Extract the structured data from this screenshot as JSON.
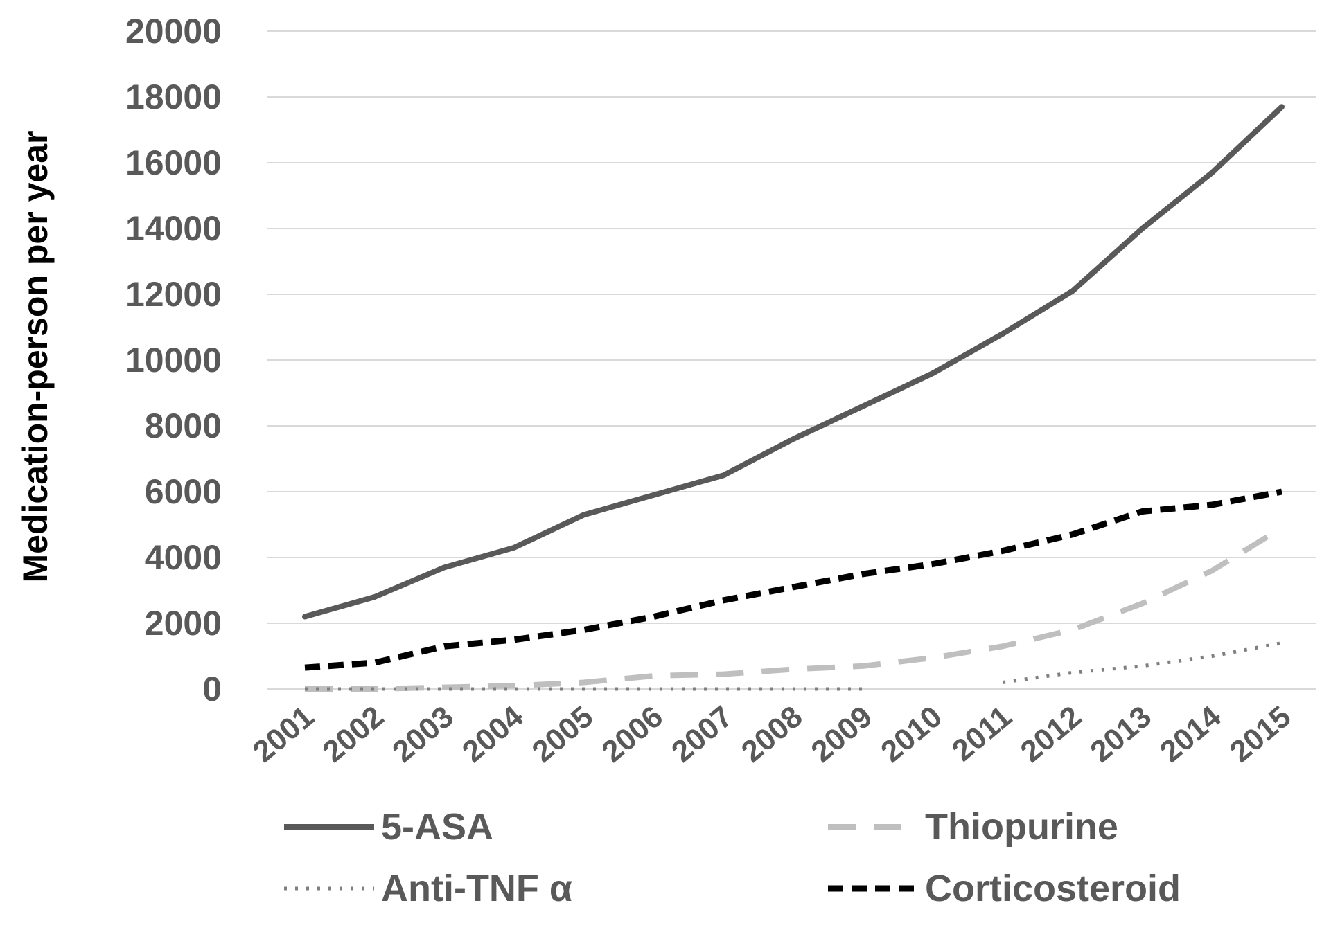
{
  "chart_data": {
    "type": "line",
    "title": "",
    "xlabel": "",
    "ylabel": "Medication-person per year",
    "ylim": [
      0,
      20000
    ],
    "yticks": [
      "0",
      "2000",
      "4000",
      "6000",
      "8000",
      "10000",
      "12000",
      "14000",
      "16000",
      "18000",
      "20000"
    ],
    "categories": [
      "2001",
      "2002",
      "2003",
      "2004",
      "2005",
      "2006",
      "2007",
      "2008",
      "2009",
      "2010",
      "2011",
      "2012",
      "2013",
      "2014",
      "2015"
    ],
    "grid": true,
    "legend_position": "bottom",
    "series": [
      {
        "name": "5-ASA",
        "style": "solid",
        "color": "#595959",
        "values": [
          2200,
          2800,
          3700,
          4300,
          5300,
          5900,
          6500,
          7600,
          8600,
          9600,
          10800,
          12100,
          14000,
          15700,
          17700
        ]
      },
      {
        "name": "Thiopurine",
        "style": "long-dash",
        "color": "#bfbfbf",
        "values": [
          0,
          0,
          50,
          100,
          200,
          400,
          450,
          600,
          700,
          950,
          1300,
          1800,
          2600,
          3600,
          4900
        ]
      },
      {
        "name": "Anti-TNF α",
        "style": "dotted",
        "color": "#7f7f7f",
        "values": [
          0,
          0,
          0,
          0,
          0,
          0,
          0,
          0,
          0,
          null,
          200,
          500,
          700,
          1000,
          1400
        ]
      },
      {
        "name": "Corticosteroid",
        "style": "dashed",
        "color": "#000000",
        "values": [
          650,
          800,
          1300,
          1500,
          1800,
          2200,
          2700,
          3100,
          3500,
          3800,
          4200,
          4700,
          5400,
          5600,
          6000
        ]
      }
    ]
  }
}
